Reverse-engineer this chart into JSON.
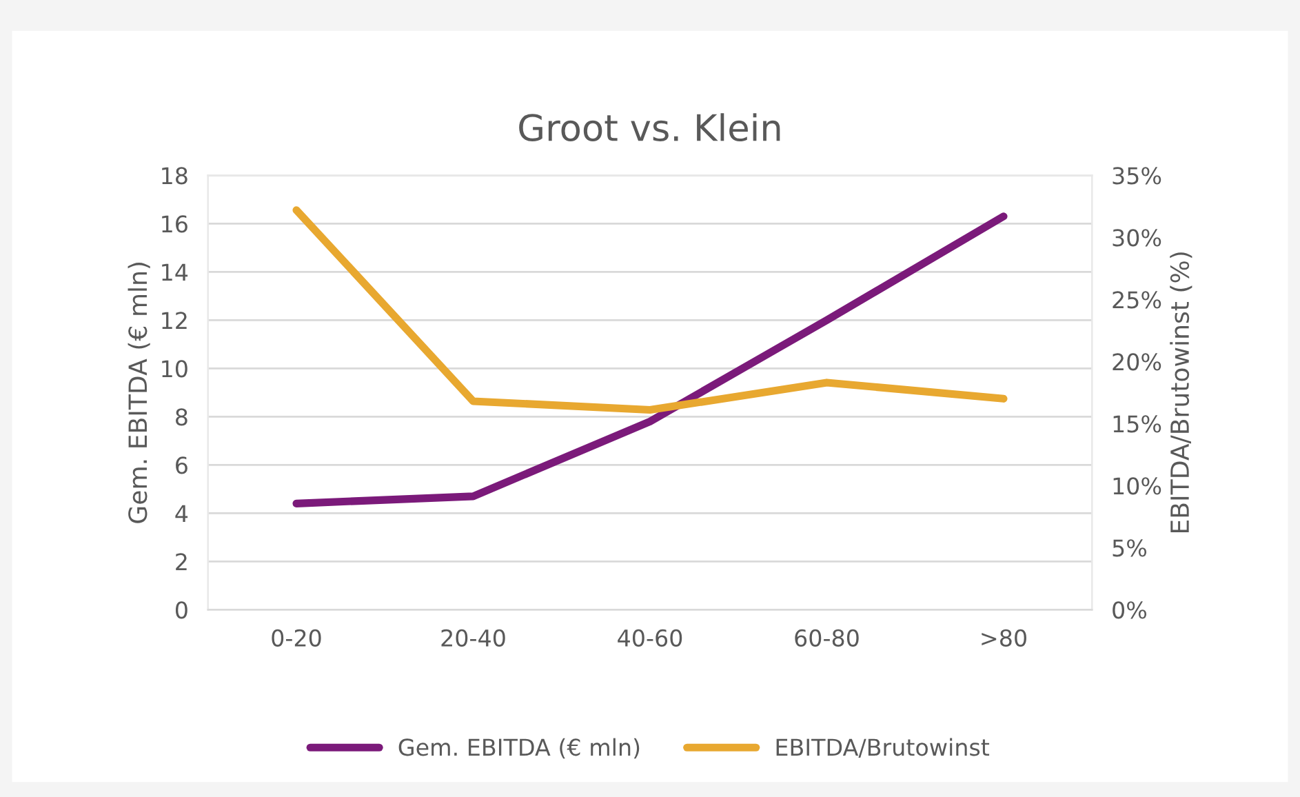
{
  "chart_data": {
    "type": "line",
    "title": "Groot vs. Klein",
    "categories": [
      "0-20",
      "20-40",
      "40-60",
      "60-80",
      ">80"
    ],
    "series": [
      {
        "name": "Gem. EBITDA (€ mln)",
        "color": "#7b1a7a",
        "values": [
          4.4,
          4.7,
          7.8,
          12.0,
          16.3
        ]
      },
      {
        "name": "EBITDA/Brutowinst",
        "color": "#e8a830",
        "axis": "y2",
        "values": [
          32.2,
          16.8,
          16.1,
          18.3,
          17.0
        ]
      }
    ],
    "ylabel": "Gem. EBITDA (€ mln)",
    "y2label": "EBITDA/Brutowinst (%)",
    "ylim": [
      0,
      18
    ],
    "yticks": [
      0,
      2,
      4,
      6,
      8,
      10,
      12,
      14,
      16,
      18
    ],
    "y2lim": [
      0,
      35
    ],
    "y2ticks": [
      {
        "value": 0,
        "label": "0%"
      },
      {
        "value": 5,
        "label": "5%"
      },
      {
        "value": 10,
        "label": "10%"
      },
      {
        "value": 15,
        "label": "15%"
      },
      {
        "value": 20,
        "label": "20%"
      },
      {
        "value": 25,
        "label": "25%"
      },
      {
        "value": 30,
        "label": "30%"
      },
      {
        "value": 35,
        "label": "35%"
      }
    ],
    "grid": "y",
    "legend": "bottom",
    "marker": "none",
    "line_style": "solid"
  }
}
